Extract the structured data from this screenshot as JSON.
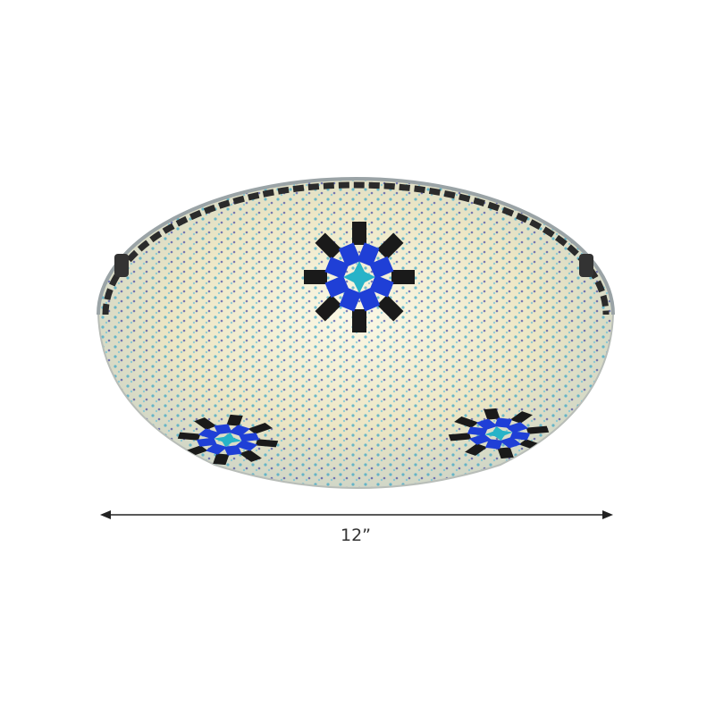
{
  "product": {
    "dimension_label": "12”",
    "colors": {
      "glass": "#f1ecd0",
      "bead_blue": "#3fa6c6",
      "bead_navy": "#2a2f9c",
      "star_blue": "#1f3fd6",
      "star_teal": "#27b3c8",
      "rim_tile": "#2b2b2b"
    }
  }
}
